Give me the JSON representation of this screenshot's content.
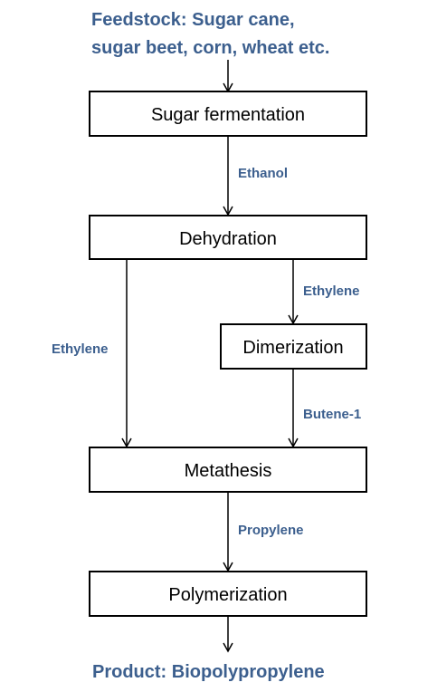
{
  "colors": {
    "label_blue": "#3c5f8e",
    "box_stroke": "#000000",
    "arrow": "#000000",
    "background": "#ffffff"
  },
  "feedstock": {
    "line1": "Feedstock: Sugar cane,",
    "line2": "sugar beet, corn, wheat etc."
  },
  "product": "Product: Biopolypropylene",
  "boxes": {
    "sugar_fermentation": "Sugar fermentation",
    "dehydration": "Dehydration",
    "dimerization": "Dimerization",
    "metathesis": "Metathesis",
    "polymerization": "Polymerization"
  },
  "edges": {
    "ethanol": "Ethanol",
    "ethylene_to_dimerization": "Ethylene",
    "ethylene_to_metathesis": "Ethylene",
    "butene": "Butene-1",
    "propylene": "Propylene"
  }
}
